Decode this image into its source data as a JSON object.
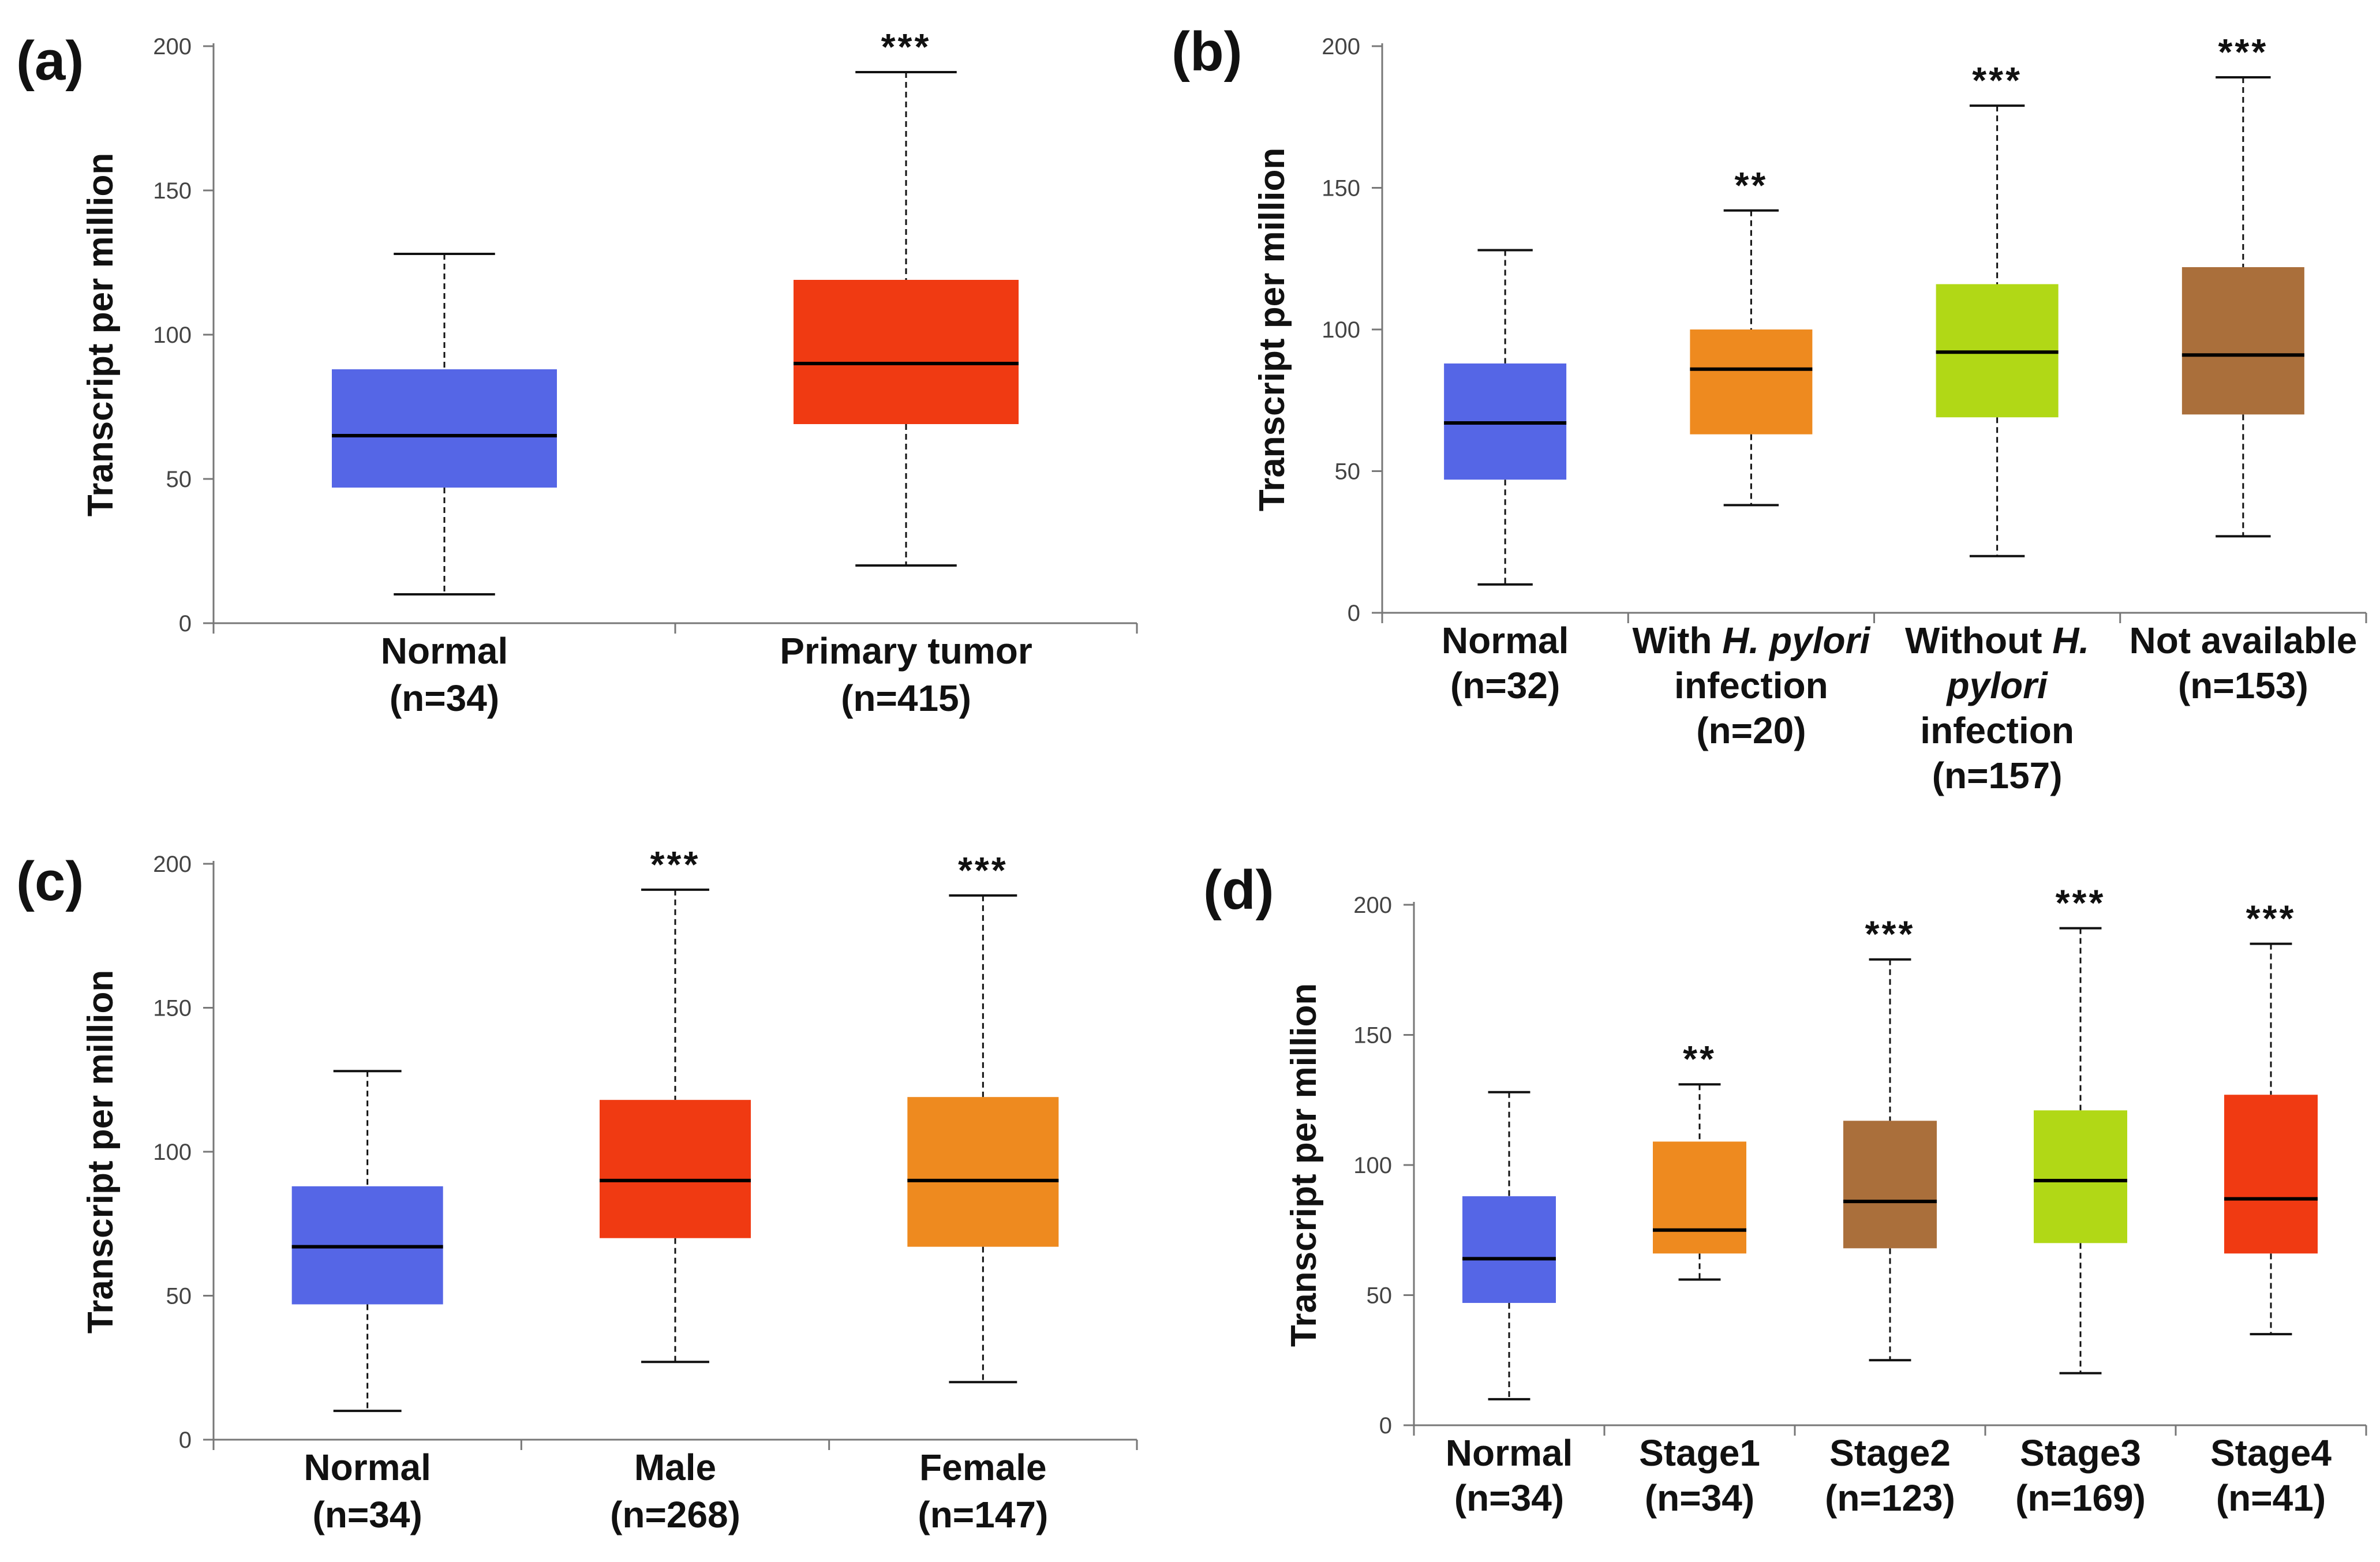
{
  "chart_data": [
    {
      "panel": "(a)",
      "type": "box",
      "ylabel": "Transcript per million",
      "ylim": [
        0,
        200
      ],
      "yticks": [
        0,
        50,
        100,
        150,
        200
      ],
      "categories": [
        {
          "lines": [
            [
              "Normal"
            ],
            [
              "(n=34)"
            ]
          ],
          "min": 10,
          "q1": 47,
          "median": 65,
          "q3": 88,
          "max": 128,
          "color": "#5566e6",
          "sig": ""
        },
        {
          "lines": [
            [
              "Primary tumor"
            ],
            [
              "(n=415)"
            ]
          ],
          "min": 20,
          "q1": 69,
          "median": 90,
          "q3": 119,
          "max": 191,
          "color": "#f03a12",
          "sig": "***"
        }
      ]
    },
    {
      "panel": "(b)",
      "type": "box",
      "ylabel": "Transcript per million",
      "ylim": [
        0,
        200
      ],
      "yticks": [
        0,
        50,
        100,
        150,
        200
      ],
      "categories": [
        {
          "lines": [
            [
              "Normal"
            ],
            [
              "(n=32)"
            ]
          ],
          "min": 10,
          "q1": 47,
          "median": 67,
          "q3": 88,
          "max": 128,
          "color": "#5566e6",
          "sig": ""
        },
        {
          "lines": [
            [
              "With ",
              "H. pylori"
            ],
            [
              "infection"
            ],
            [
              "(n=20)"
            ]
          ],
          "min": 38,
          "q1": 63,
          "median": 86,
          "q3": 100,
          "max": 142,
          "color": "#ee8a1f",
          "sig": "**"
        },
        {
          "lines": [
            [
              "Without ",
              "H."
            ],
            [
              "pylori"
            ],
            [
              "infection"
            ],
            [
              "(n=157)"
            ]
          ],
          "min": 20,
          "q1": 69,
          "median": 92,
          "q3": 116,
          "max": 179,
          "color": "#b1d816",
          "sig": "***"
        },
        {
          "lines": [
            [
              "Not available"
            ],
            [
              "(n=153)"
            ]
          ],
          "min": 27,
          "q1": 70,
          "median": 91,
          "q3": 122,
          "max": 189,
          "color": "#aa6f3b",
          "sig": "***"
        }
      ]
    },
    {
      "panel": "(c)",
      "type": "box",
      "ylabel": "Transcript per million",
      "ylim": [
        0,
        200
      ],
      "yticks": [
        0,
        50,
        100,
        150,
        200
      ],
      "categories": [
        {
          "lines": [
            [
              "Normal"
            ],
            [
              "(n=34)"
            ]
          ],
          "min": 10,
          "q1": 47,
          "median": 67,
          "q3": 88,
          "max": 128,
          "color": "#5566e6",
          "sig": ""
        },
        {
          "lines": [
            [
              "Male"
            ],
            [
              "(n=268)"
            ]
          ],
          "min": 27,
          "q1": 70,
          "median": 90,
          "q3": 118,
          "max": 191,
          "color": "#f03a12",
          "sig": "***"
        },
        {
          "lines": [
            [
              "Female"
            ],
            [
              "(n=147)"
            ]
          ],
          "min": 20,
          "q1": 67,
          "median": 90,
          "q3": 119,
          "max": 189,
          "color": "#ee8a1f",
          "sig": "***"
        }
      ]
    },
    {
      "panel": "(d)",
      "type": "box",
      "ylabel": "Transcript per million",
      "ylim": [
        0,
        200
      ],
      "yticks": [
        0,
        50,
        100,
        150,
        200
      ],
      "categories": [
        {
          "lines": [
            [
              "Normal"
            ],
            [
              "(n=34)"
            ]
          ],
          "min": 10,
          "q1": 47,
          "median": 64,
          "q3": 88,
          "max": 128,
          "color": "#5566e6",
          "sig": ""
        },
        {
          "lines": [
            [
              "Stage1"
            ],
            [
              "(n=34)"
            ]
          ],
          "min": 56,
          "q1": 66,
          "median": 75,
          "q3": 109,
          "max": 131,
          "color": "#ee8a1f",
          "sig": "**"
        },
        {
          "lines": [
            [
              "Stage2"
            ],
            [
              "(n=123)"
            ]
          ],
          "min": 25,
          "q1": 68,
          "median": 86,
          "q3": 117,
          "max": 179,
          "color": "#aa6f3b",
          "sig": "***"
        },
        {
          "lines": [
            [
              "Stage3"
            ],
            [
              "(n=169)"
            ]
          ],
          "min": 20,
          "q1": 70,
          "median": 94,
          "q3": 121,
          "max": 191,
          "color": "#b1d816",
          "sig": "***"
        },
        {
          "lines": [
            [
              "Stage4"
            ],
            [
              "(n=41)"
            ]
          ],
          "min": 35,
          "q1": 66,
          "median": 87,
          "q3": 127,
          "max": 185,
          "color": "#f03a12",
          "sig": "***"
        }
      ]
    }
  ]
}
